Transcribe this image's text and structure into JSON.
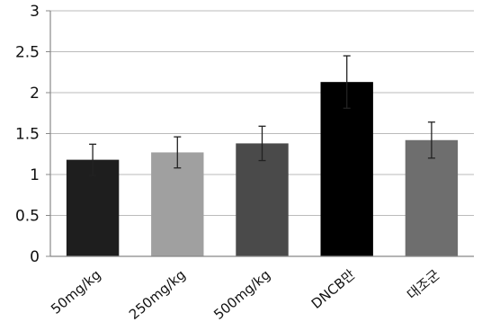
{
  "chart_data": {
    "type": "bar",
    "title": "",
    "xlabel": "",
    "ylabel": "",
    "ylim": [
      0,
      3
    ],
    "yticks": [
      0,
      0.5,
      1,
      1.5,
      2,
      2.5,
      3
    ],
    "ytick_labels": [
      "0",
      "0.5",
      "1",
      "1.5",
      "2",
      "2.5",
      "3"
    ],
    "grid": "horizontal",
    "legend": "none",
    "categories": [
      "50mg/kg",
      "250mg/kg",
      "500mg/kg",
      "DNCB만",
      "대조군"
    ],
    "values": [
      1.18,
      1.27,
      1.38,
      2.13,
      1.42
    ],
    "error": [
      0.19,
      0.19,
      0.21,
      0.32,
      0.22
    ],
    "colors": [
      "#1e1e1e",
      "#a0a0a0",
      "#4a4a4a",
      "#000000",
      "#6e6e6e"
    ],
    "grid_color": "#bbbbbb",
    "axis_color": "#888888"
  }
}
